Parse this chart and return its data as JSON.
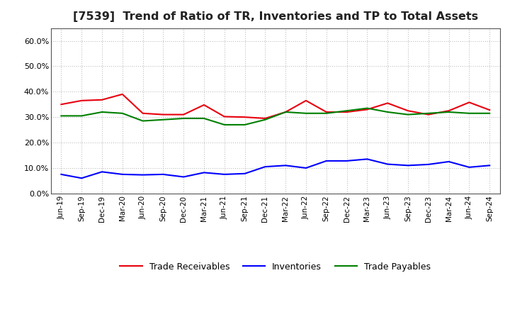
{
  "title": "[7539]  Trend of Ratio of TR, Inventories and TP to Total Assets",
  "x_labels": [
    "Jun-19",
    "Sep-19",
    "Dec-19",
    "Mar-20",
    "Jun-20",
    "Sep-20",
    "Dec-20",
    "Mar-21",
    "Jun-21",
    "Sep-21",
    "Dec-21",
    "Mar-22",
    "Jun-22",
    "Sep-22",
    "Dec-22",
    "Mar-23",
    "Jun-23",
    "Sep-23",
    "Dec-23",
    "Mar-24",
    "Jun-24",
    "Sep-24"
  ],
  "trade_receivables": [
    0.35,
    0.365,
    0.368,
    0.39,
    0.315,
    0.31,
    0.31,
    0.348,
    0.302,
    0.3,
    0.295,
    0.32,
    0.365,
    0.32,
    0.32,
    0.33,
    0.355,
    0.325,
    0.31,
    0.325,
    0.358,
    0.328
  ],
  "inventories": [
    0.075,
    0.06,
    0.085,
    0.075,
    0.073,
    0.075,
    0.065,
    0.082,
    0.075,
    0.078,
    0.105,
    0.11,
    0.1,
    0.128,
    0.128,
    0.135,
    0.115,
    0.11,
    0.114,
    0.125,
    0.103,
    0.11
  ],
  "trade_payables": [
    0.305,
    0.305,
    0.32,
    0.315,
    0.285,
    0.29,
    0.295,
    0.295,
    0.27,
    0.27,
    0.29,
    0.32,
    0.315,
    0.315,
    0.325,
    0.335,
    0.32,
    0.31,
    0.315,
    0.32,
    0.315,
    0.315
  ],
  "tr_color": "#e8000d",
  "inv_color": "#0000ff",
  "tp_color": "#008000",
  "ylim": [
    0.0,
    0.65
  ],
  "yticks": [
    0.0,
    0.1,
    0.2,
    0.3,
    0.4,
    0.5,
    0.6
  ],
  "background_color": "#ffffff",
  "plot_bg_color": "#ffffff",
  "grid_color": "#b0b0b0",
  "legend_labels": [
    "Trade Receivables",
    "Inventories",
    "Trade Payables"
  ],
  "title_fontsize": 11.5,
  "linewidth": 1.5
}
